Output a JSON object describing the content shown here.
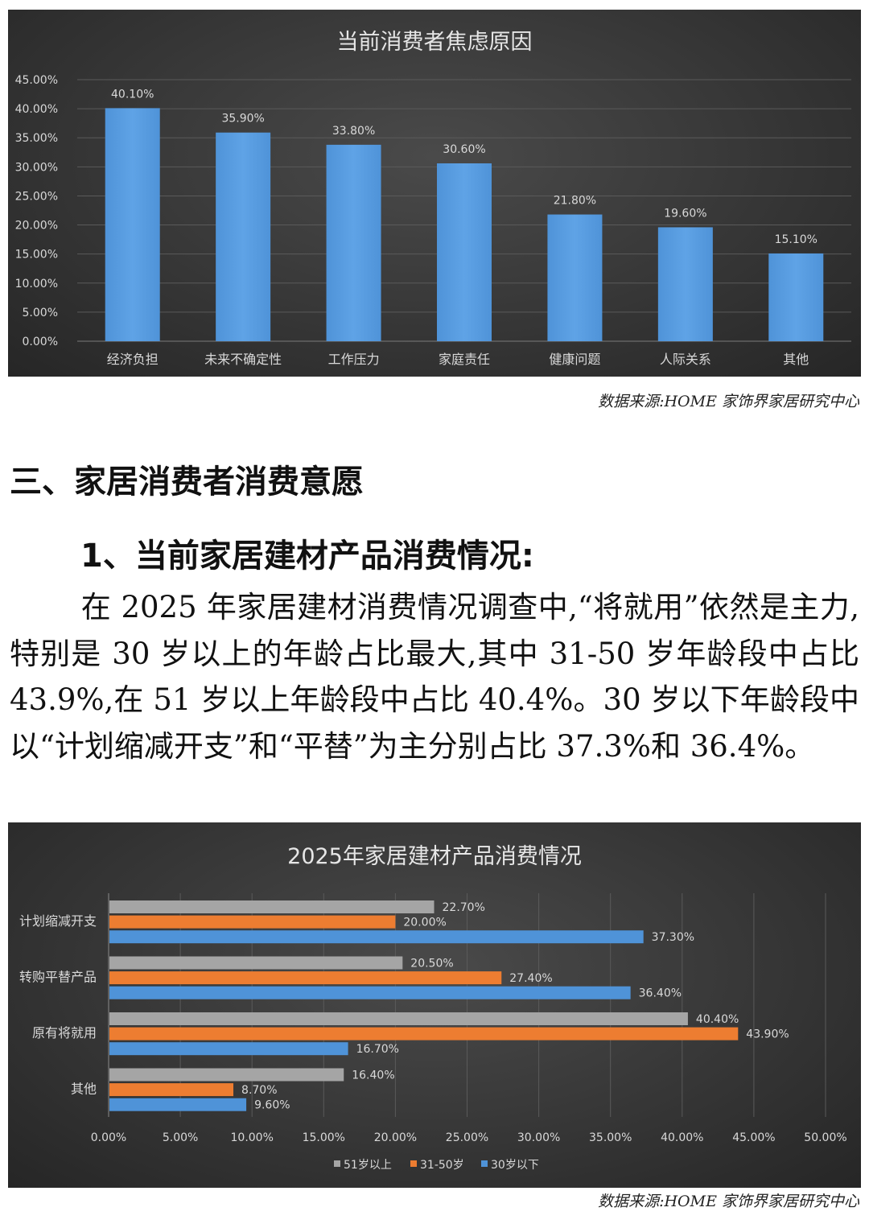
{
  "chart_data": [
    {
      "type": "bar",
      "title": "当前消费者焦虑原因",
      "categories": [
        "经济负担",
        "未来不确定性",
        "工作压力",
        "家庭责任",
        "健康问题",
        "人际关系",
        "其他"
      ],
      "values": [
        40.1,
        35.9,
        33.8,
        30.6,
        21.8,
        19.6,
        15.1
      ],
      "value_labels": [
        "40.10%",
        "35.90%",
        "33.80%",
        "30.60%",
        "21.80%",
        "19.60%",
        "15.10%"
      ],
      "ylim": [
        0,
        45
      ],
      "yticks": [
        "0.00%",
        "5.00%",
        "10.00%",
        "15.00%",
        "20.00%",
        "25.00%",
        "30.00%",
        "35.00%",
        "40.00%",
        "45.00%"
      ],
      "grid": true,
      "colors": {
        "bar": "#4f93d8",
        "bar_light": "#5fa3e6",
        "grid": "#5a5a5a",
        "text": "#d9d9d9",
        "title": "#e6e6e6"
      }
    },
    {
      "type": "bar",
      "orientation": "horizontal",
      "title": "2025年家居建材产品消费情况",
      "categories": [
        "计划缩减开支",
        "转购平替产品",
        "原有将就用",
        "其他"
      ],
      "series": [
        {
          "name": "51岁以上",
          "color": "#a5a5a5",
          "values": [
            22.7,
            20.5,
            40.4,
            16.4
          ],
          "labels": [
            "22.70%",
            "20.50%",
            "40.40%",
            "16.40%"
          ]
        },
        {
          "name": "31-50岁",
          "color": "#ed7d31",
          "values": [
            20.0,
            27.4,
            43.9,
            8.7
          ],
          "labels": [
            "20.00%",
            "27.40%",
            "43.90%",
            "8.70%"
          ]
        },
        {
          "name": "30岁以下",
          "color": "#4f93d8",
          "values": [
            37.3,
            36.4,
            16.7,
            9.6
          ],
          "labels": [
            "37.30%",
            "36.40%",
            "16.70%",
            "9.60%"
          ]
        }
      ],
      "xlim": [
        0,
        50
      ],
      "xticks": [
        "0.00%",
        "5.00%",
        "10.00%",
        "15.00%",
        "20.00%",
        "25.00%",
        "30.00%",
        "35.00%",
        "40.00%",
        "45.00%",
        "50.00%"
      ],
      "grid": true,
      "legend": "bottom",
      "colors": {
        "grid": "#5a5a5a",
        "text": "#d9d9d9",
        "title": "#e6e6e6"
      }
    }
  ],
  "source_note": "数据来源:HOME 家饰界家居研究中心",
  "section_heading": "三、家居消费者消费意愿",
  "sub_heading": "1、当前家居建材产品消费情况:",
  "paragraph": "在 2025 年家居建材消费情况调查中,“将就用”依然是主力,特别是 30 岁以上的年龄占比最大,其中 31-50 岁年龄段中占比 43.9%,在 51 岁以上年龄段中占比 40.4%。30 岁以下年龄段中以“计划缩减开支”和“平替”为主分别占比 37.3%和 36.4%。"
}
